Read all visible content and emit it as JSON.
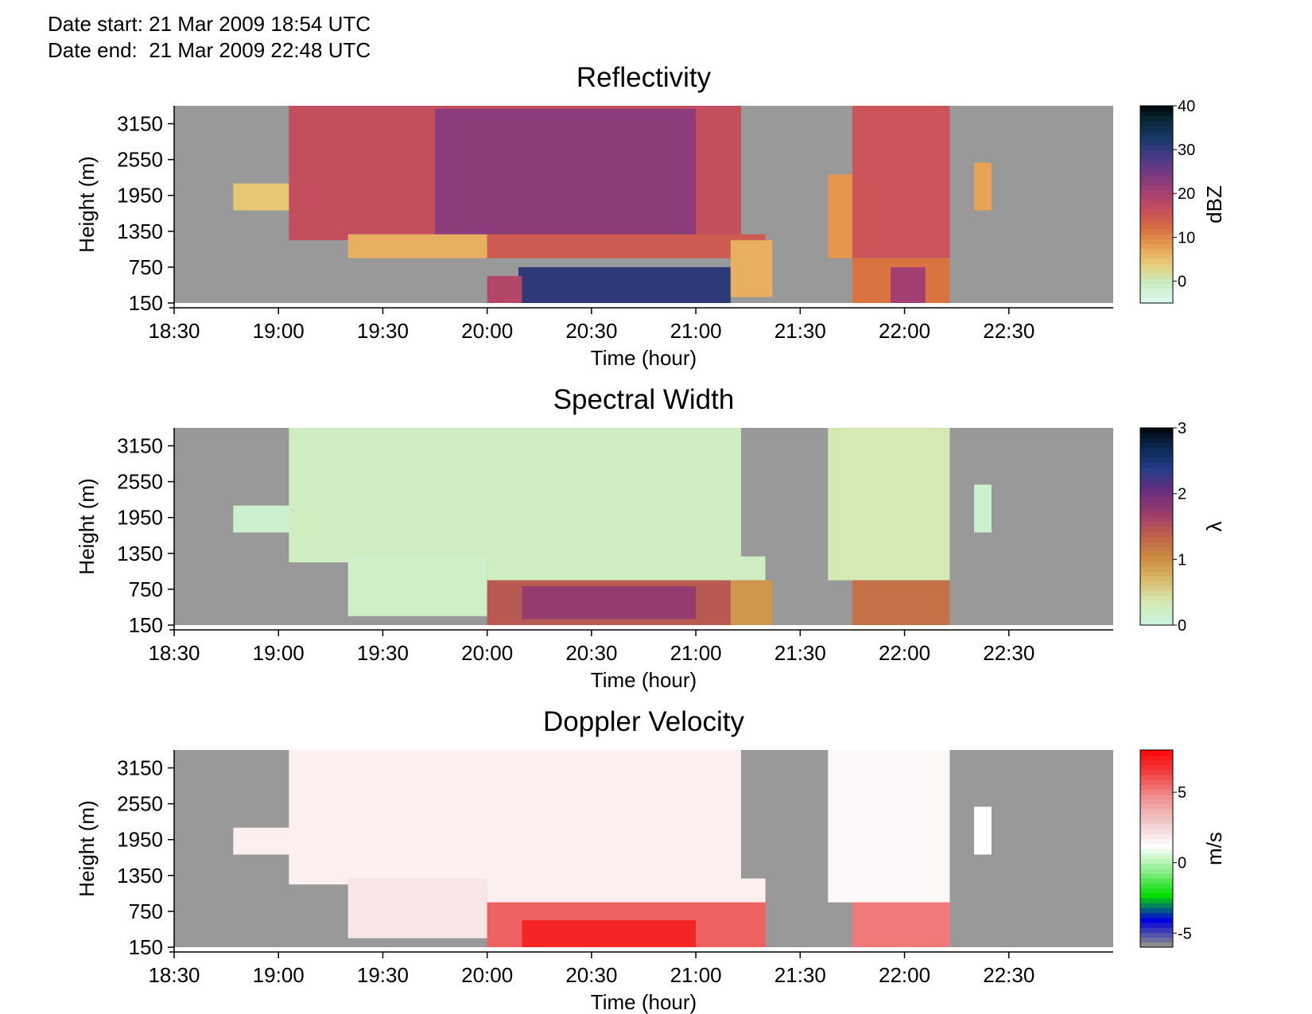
{
  "header": {
    "date_start": "Date start: 21 Mar 2009 18:54 UTC",
    "date_end": "Date end:  21 Mar 2009 22:48 UTC"
  },
  "colors": {
    "missing": "#999999",
    "reflectivity_scale": [
      "#dff8ee",
      "#c8ecc0",
      "#e8d080",
      "#e6a050",
      "#d87040",
      "#c8505a",
      "#a84070",
      "#7a3a80",
      "#4a3a8a",
      "#183a6a",
      "#0a2a3a",
      "#000000"
    ],
    "spectral_scale": [
      "#c8f4dc",
      "#d6e8b0",
      "#d8b868",
      "#cc8a40",
      "#c0604c",
      "#9a3c6c",
      "#6a2e7e",
      "#243c88",
      "#0a2a52",
      "#000000"
    ],
    "velocity_scale": [
      "#8c8c8c",
      "#0000dd",
      "#00dd00",
      "#8cee8c",
      "#ffffff",
      "#f0c8c8",
      "#f09090",
      "#f04040",
      "#ff0000"
    ]
  },
  "chart_data": [
    {
      "type": "heatmap",
      "title": "Reflectivity",
      "xlabel": "Time (hour)",
      "ylabel": "Height (m)",
      "x_ticks": [
        "18:30",
        "19:00",
        "19:30",
        "20:00",
        "20:30",
        "21:00",
        "21:30",
        "22:00",
        "22:30"
      ],
      "y_ticks": [
        "150",
        "750",
        "1350",
        "1950",
        "2550",
        "3150"
      ],
      "xlim": [
        "18:30",
        "23:00"
      ],
      "ylim": [
        150,
        3450
      ],
      "colorbar": {
        "label": "dBZ",
        "ticks": [
          "40",
          "30",
          "20",
          "10",
          "0"
        ],
        "range": [
          -5,
          40
        ]
      },
      "regions": [
        {
          "t_start": "18:47",
          "t_end": "19:07",
          "h_bottom": 1700,
          "h_top": 2150,
          "value": 4
        },
        {
          "t_start": "19:03",
          "t_end": "21:13",
          "h_bottom": 1200,
          "h_top": 3450,
          "value": 16
        },
        {
          "t_start": "19:45",
          "t_end": "21:00",
          "h_bottom": 1100,
          "h_top": 3400,
          "value": 22
        },
        {
          "t_start": "19:20",
          "t_end": "20:00",
          "h_bottom": 900,
          "h_top": 1300,
          "value": 6
        },
        {
          "t_start": "20:00",
          "t_end": "21:20",
          "h_bottom": 900,
          "h_top": 1300,
          "value": 14
        },
        {
          "t_start": "20:09",
          "t_end": "21:10",
          "h_bottom": 150,
          "h_top": 750,
          "value": 30
        },
        {
          "t_start": "20:00",
          "t_end": "20:10",
          "h_bottom": 150,
          "h_top": 600,
          "value": 18
        },
        {
          "t_start": "21:10",
          "t_end": "21:22",
          "h_bottom": 250,
          "h_top": 1200,
          "value": 6
        },
        {
          "t_start": "21:38",
          "t_end": "21:48",
          "h_bottom": 900,
          "h_top": 2300,
          "value": 8
        },
        {
          "t_start": "21:45",
          "t_end": "22:13",
          "h_bottom": 900,
          "h_top": 3450,
          "value": 15
        },
        {
          "t_start": "21:45",
          "t_end": "22:13",
          "h_bottom": 150,
          "h_top": 900,
          "value": 11
        },
        {
          "t_start": "21:56",
          "t_end": "22:06",
          "h_bottom": 150,
          "h_top": 750,
          "value": 20
        },
        {
          "t_start": "22:20",
          "t_end": "22:25",
          "h_bottom": 1700,
          "h_top": 2500,
          "value": 7
        }
      ]
    },
    {
      "type": "heatmap",
      "title": "Spectral Width",
      "xlabel": "Time (hour)",
      "ylabel": "Height (m)",
      "x_ticks": [
        "18:30",
        "19:00",
        "19:30",
        "20:00",
        "20:30",
        "21:00",
        "21:30",
        "22:00",
        "22:30"
      ],
      "y_ticks": [
        "150",
        "750",
        "1350",
        "1950",
        "2550",
        "3150"
      ],
      "xlim": [
        "18:30",
        "23:00"
      ],
      "ylim": [
        150,
        3450
      ],
      "colorbar": {
        "label": "λ",
        "ticks": [
          "3",
          "2",
          "1",
          "0"
        ],
        "range": [
          0,
          3
        ]
      },
      "regions": [
        {
          "t_start": "18:47",
          "t_end": "19:07",
          "h_bottom": 1700,
          "h_top": 2150,
          "value": 0.1
        },
        {
          "t_start": "19:03",
          "t_end": "21:13",
          "h_bottom": 1200,
          "h_top": 3450,
          "value": 0.2
        },
        {
          "t_start": "19:20",
          "t_end": "20:00",
          "h_bottom": 300,
          "h_top": 1300,
          "value": 0.15
        },
        {
          "t_start": "20:00",
          "t_end": "21:20",
          "h_bottom": 900,
          "h_top": 1300,
          "value": 0.2
        },
        {
          "t_start": "20:00",
          "t_end": "21:10",
          "h_bottom": 150,
          "h_top": 900,
          "value": 1.4
        },
        {
          "t_start": "20:10",
          "t_end": "21:00",
          "h_bottom": 250,
          "h_top": 800,
          "value": 1.7
        },
        {
          "t_start": "21:10",
          "t_end": "21:22",
          "h_bottom": 150,
          "h_top": 900,
          "value": 0.9
        },
        {
          "t_start": "21:38",
          "t_end": "22:13",
          "h_bottom": 900,
          "h_top": 3450,
          "value": 0.3
        },
        {
          "t_start": "21:45",
          "t_end": "22:13",
          "h_bottom": 150,
          "h_top": 900,
          "value": 1.2
        },
        {
          "t_start": "22:20",
          "t_end": "22:25",
          "h_bottom": 1700,
          "h_top": 2500,
          "value": 0.1
        }
      ]
    },
    {
      "type": "heatmap",
      "title": "Doppler Velocity",
      "xlabel": "Time (hour)",
      "ylabel": "Height (m)",
      "x_ticks": [
        "18:30",
        "19:00",
        "19:30",
        "20:00",
        "20:30",
        "21:00",
        "21:30",
        "22:00",
        "22:30"
      ],
      "y_ticks": [
        "150",
        "750",
        "1350",
        "1950",
        "2550",
        "3150"
      ],
      "xlim": [
        "18:30",
        "23:00"
      ],
      "ylim": [
        150,
        3450
      ],
      "colorbar": {
        "label": "m/s",
        "ticks": [
          "5",
          "0",
          "-5"
        ],
        "range": [
          -6,
          8
        ]
      },
      "regions": [
        {
          "t_start": "18:47",
          "t_end": "19:07",
          "h_bottom": 1700,
          "h_top": 2150,
          "value": 1.5
        },
        {
          "t_start": "19:03",
          "t_end": "21:13",
          "h_bottom": 1200,
          "h_top": 3450,
          "value": 1.5
        },
        {
          "t_start": "19:20",
          "t_end": "20:00",
          "h_bottom": 300,
          "h_top": 1300,
          "value": 1.8
        },
        {
          "t_start": "20:00",
          "t_end": "21:20",
          "h_bottom": 900,
          "h_top": 1300,
          "value": 1.5
        },
        {
          "t_start": "20:00",
          "t_end": "21:20",
          "h_bottom": 150,
          "h_top": 900,
          "value": 5.5
        },
        {
          "t_start": "20:10",
          "t_end": "21:00",
          "h_bottom": 150,
          "h_top": 600,
          "value": 7
        },
        {
          "t_start": "21:38",
          "t_end": "22:13",
          "h_bottom": 900,
          "h_top": 3450,
          "value": 1.2
        },
        {
          "t_start": "21:45",
          "t_end": "22:13",
          "h_bottom": 150,
          "h_top": 900,
          "value": 5
        },
        {
          "t_start": "22:20",
          "t_end": "22:25",
          "h_bottom": 1700,
          "h_top": 2500,
          "value": 1
        }
      ]
    }
  ]
}
